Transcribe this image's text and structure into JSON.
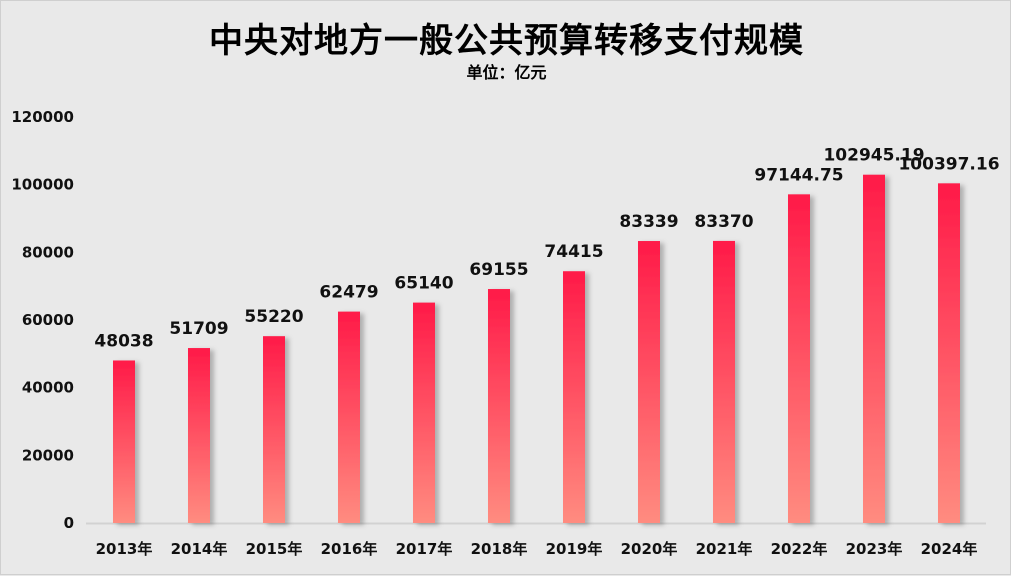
{
  "chart_data": {
    "type": "bar",
    "title": "中央对地方一般公共预算转移支付规模",
    "subtitle": "单位：亿元",
    "categories": [
      "2013年",
      "2014年",
      "2015年",
      "2016年",
      "2017年",
      "2018年",
      "2019年",
      "2020年",
      "2021年",
      "2022年",
      "2023年",
      "2024年"
    ],
    "values": [
      48038,
      51709,
      55220,
      62479,
      65140,
      69155,
      74415,
      83339,
      83370,
      97144.75,
      102945.19,
      100397.16
    ],
    "data_labels": [
      "48038",
      "51709",
      "55220",
      "62479",
      "65140",
      "69155",
      "74415",
      "83339",
      "83370",
      "97144.75",
      "102945.19",
      "100397.16"
    ],
    "ylim": [
      0,
      120000
    ],
    "yticks": [
      "0",
      "20000",
      "40000",
      "60000",
      "80000",
      "100000",
      "120000"
    ],
    "grid": false,
    "legend": "none",
    "colors": {
      "bar_top": "#ff1a48",
      "bar_bottom": "#ff8c80",
      "background": "#e9e9e9"
    }
  }
}
